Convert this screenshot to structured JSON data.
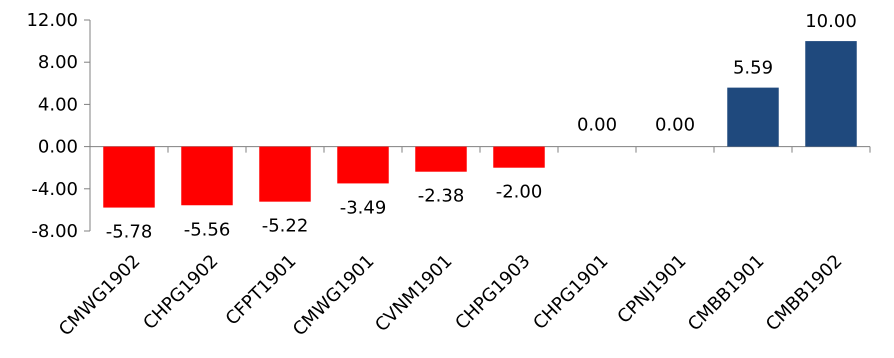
{
  "chart_data": {
    "type": "bar",
    "title": "",
    "xlabel": "",
    "ylabel": "",
    "ylim": [
      -8,
      12
    ],
    "yticks": [
      12,
      8,
      4,
      0,
      -4,
      -8
    ],
    "ytick_labels": [
      "12.00",
      "8.00",
      "4.00",
      "0.00",
      "-4.00",
      "-8.00"
    ],
    "categories": [
      "CMWG1902",
      "CHPG1902",
      "CFPT1901",
      "CMWG1901",
      "CVNM1901",
      "CHPG1903",
      "CHPG1901",
      "CPNJ1901",
      "CMBB1901",
      "CMBB1902"
    ],
    "values": [
      -5.78,
      -5.56,
      -5.22,
      -3.49,
      -2.38,
      -2.0,
      0.0,
      0.0,
      5.59,
      10.0
    ],
    "value_labels": [
      "-5.78",
      "-5.56",
      "-5.22",
      "-3.49",
      "-2.38",
      "-2.00",
      "0.00",
      "0.00",
      "5.59",
      "10.00"
    ],
    "colors": {
      "negative": "#ff0000",
      "positive": "#1f497d",
      "axis": "#808080"
    },
    "grid": false,
    "legend": "none"
  }
}
